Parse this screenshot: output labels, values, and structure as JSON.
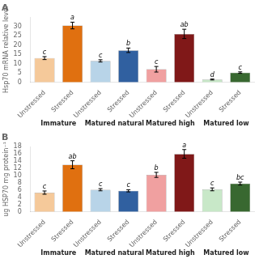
{
  "chart_data": [
    {
      "type": "bar",
      "title": "A",
      "ylabel": "Hsp70 mRNA relative level",
      "categories": [
        "Unstressed",
        "Stressed",
        "Unstressed",
        "Stressed",
        "Unstressed",
        "Stressed",
        "Unstressed",
        "Stressed"
      ],
      "group_labels": [
        "Immature",
        "Matured natural",
        "Matured high",
        "Matured low"
      ],
      "values": [
        13.0,
        30.5,
        11.5,
        17.2,
        7.0,
        26.0,
        1.5,
        5.2
      ],
      "errors": [
        0.8,
        1.8,
        0.6,
        1.2,
        1.5,
        2.5,
        0.25,
        0.4
      ],
      "colors": [
        "#F5C99A",
        "#E07010",
        "#B8D4E8",
        "#3060A0",
        "#F0A0A0",
        "#801818",
        "#C8E8C8",
        "#386830"
      ],
      "annotations": [
        "c",
        "a",
        "c",
        "b",
        "c",
        "ab",
        "d",
        "c"
      ],
      "ylim": [
        0,
        35
      ],
      "yticks": [
        0,
        5,
        10,
        15,
        20,
        25,
        30
      ],
      "grid": false
    },
    {
      "type": "bar",
      "title": "B",
      "ylabel": "ug HSP70 mg protein⁻¹",
      "categories": [
        "Unstressed",
        "Stressed",
        "Unstressed",
        "Stressed",
        "Unstressed",
        "Stressed",
        "Unstressed",
        "Stressed"
      ],
      "group_labels": [
        "Immature",
        "Matured natural",
        "Matured high",
        "Matured low"
      ],
      "values": [
        5.3,
        13.0,
        6.1,
        5.8,
        10.2,
        16.0,
        6.2,
        7.8
      ],
      "errors": [
        0.45,
        1.1,
        0.3,
        0.3,
        0.7,
        1.2,
        0.4,
        0.4
      ],
      "colors": [
        "#F5C99A",
        "#E07010",
        "#B8D4E8",
        "#3060A0",
        "#F0A0A0",
        "#801818",
        "#C8E8C8",
        "#386830"
      ],
      "annotations": [
        "c",
        "ab",
        "c",
        "c",
        "b",
        "a",
        "c",
        "bc"
      ],
      "ylim": [
        0,
        18
      ],
      "yticks": [
        0,
        2,
        4,
        6,
        8,
        10,
        12,
        14,
        16,
        18
      ],
      "grid": false
    }
  ]
}
